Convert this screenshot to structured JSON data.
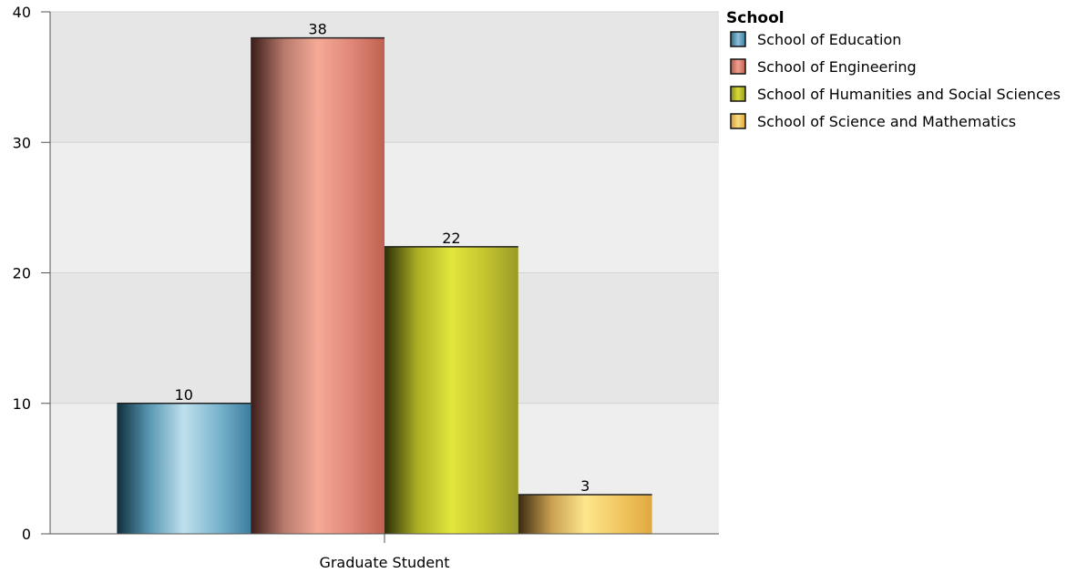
{
  "chart_data": {
    "type": "bar",
    "categories": [
      "Graduate Student"
    ],
    "series": [
      {
        "name": "School of Education",
        "values": [
          10
        ],
        "color": "#4a8fb0"
      },
      {
        "name": "School of Engineering",
        "values": [
          38
        ],
        "color": "#e07a6a"
      },
      {
        "name": "School of Humanities and Social Sciences",
        "values": [
          22
        ],
        "color": "#c8c82a"
      },
      {
        "name": "School of Science and Mathematics",
        "values": [
          3
        ],
        "color": "#f0c050"
      }
    ],
    "title": "",
    "xlabel": "",
    "ylabel": "",
    "ylim": [
      0,
      40
    ],
    "yticks": [
      "0",
      "10",
      "20",
      "30",
      "40"
    ],
    "grid": true,
    "data_labels": [
      "10",
      "38",
      "22",
      "3"
    ],
    "legend": {
      "title": "School",
      "placement": "top-right"
    }
  }
}
